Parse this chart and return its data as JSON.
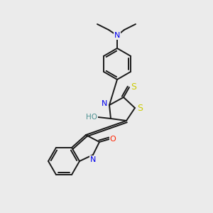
{
  "background_color": "#ebebeb",
  "bond_color": "#1a1a1a",
  "atom_colors": {
    "N": "#0000ee",
    "O": "#ff2200",
    "S": "#cccc00",
    "HO_color": "#4a9090",
    "H_color": "#4a9090"
  },
  "lw": 1.4,
  "figsize": [
    3.0,
    3.0
  ],
  "dpi": 100
}
